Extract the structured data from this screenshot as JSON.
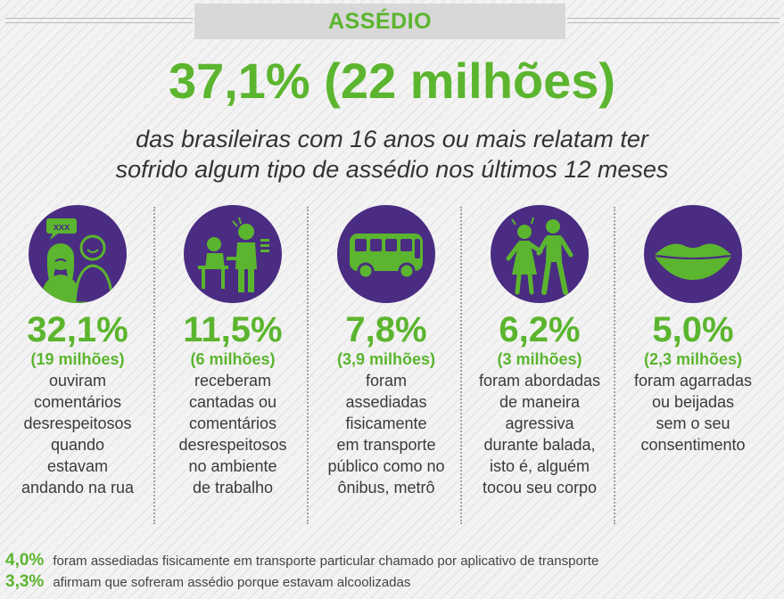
{
  "header": {
    "title": "ASSÉDIO"
  },
  "headline": {
    "value": "37,1% (22 milhões)",
    "line1": "das brasileiras com 16 anos ou mais relatam ter",
    "line2": "sofrido algum tipo de assédio nos últimos 12 meses"
  },
  "stats": [
    {
      "icon": "street-comments-icon",
      "pct": "32,1%",
      "millions": "(19 milhões)",
      "desc": [
        "ouviram",
        "comentários",
        "desrespeitosos",
        "quando",
        "estavam",
        "andando na rua"
      ]
    },
    {
      "icon": "workplace-icon",
      "pct": "11,5%",
      "millions": "(6 milhões)",
      "desc": [
        "receberam",
        "cantadas ou",
        "comentários",
        "desrespeitosos",
        "no ambiente",
        "de trabalho"
      ]
    },
    {
      "icon": "bus-icon",
      "pct": "7,8%",
      "millions": "(3,9 milhões)",
      "desc": [
        "foram",
        "assediadas",
        "fisicamente",
        "em transporte",
        "público como no",
        "ônibus, metrô"
      ]
    },
    {
      "icon": "party-icon",
      "pct": "6,2%",
      "millions": "(3 milhões)",
      "desc": [
        "foram abordadas",
        "de maneira",
        "agressiva",
        "durante balada,",
        "isto é, alguém",
        "tocou seu corpo"
      ]
    },
    {
      "icon": "lips-icon",
      "pct": "5,0%",
      "millions": "(2,3 milhões)",
      "desc": [
        "foram agarradas",
        "ou beijadas",
        "sem o seu",
        "consentimento"
      ]
    }
  ],
  "footnotes": [
    {
      "pct": "4,0%",
      "text": "foram assediadas fisicamente em transporte particular chamado por aplicativo de transporte"
    },
    {
      "pct": "3,3%",
      "text": "afirmam que sofreram assédio porque estavam alcoolizadas"
    }
  ],
  "colors": {
    "green": "#5bb52e",
    "purple": "#4a2c82",
    "text": "#3a3a3a"
  }
}
